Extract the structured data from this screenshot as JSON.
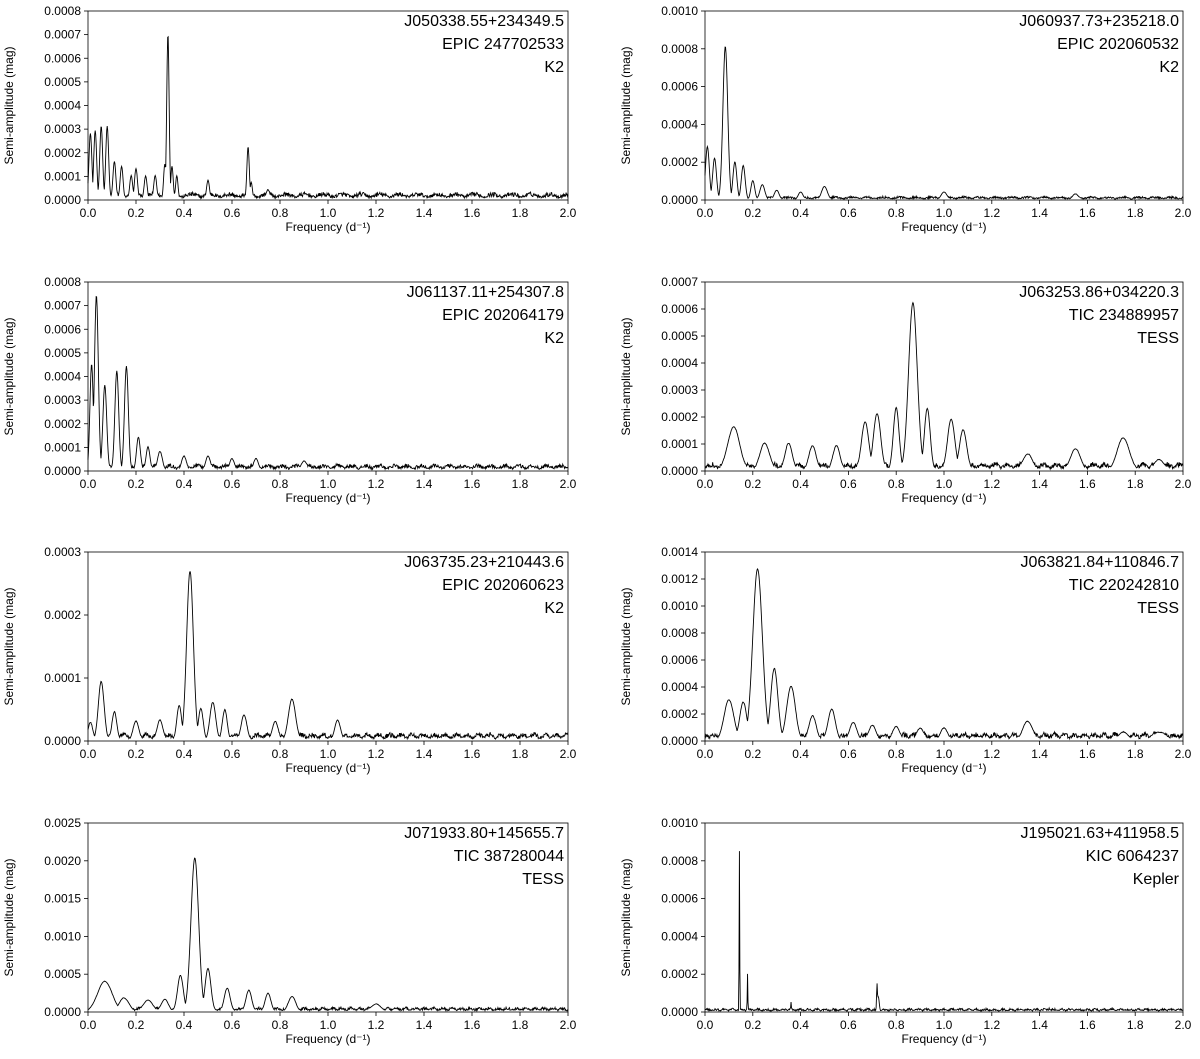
{
  "chart_data": [
    {
      "type": "line",
      "xlabel": "Frequency (d⁻¹)",
      "ylabel": "Semi-amplitude (mag)",
      "xlim": [
        0,
        2.0
      ],
      "ylim": [
        0,
        0.0008
      ],
      "xticks": [
        "0.0",
        "0.2",
        "0.4",
        "0.6",
        "0.8",
        "1.0",
        "1.2",
        "1.4",
        "1.6",
        "1.8",
        "2.0"
      ],
      "yticks": [
        "0.0000",
        "0.0001",
        "0.0002",
        "0.0003",
        "0.0004",
        "0.0005",
        "0.0006",
        "0.0007",
        "0.0008"
      ],
      "annotations": [
        "J050338.55+234349.5",
        "EPIC 247702533",
        "K2"
      ],
      "noise_level": 2e-05,
      "peaks": [
        [
          0.01,
          0.00028,
          0.006
        ],
        [
          0.03,
          0.00029,
          0.006
        ],
        [
          0.055,
          0.00031,
          0.006
        ],
        [
          0.08,
          0.00031,
          0.006
        ],
        [
          0.11,
          0.00016,
          0.006
        ],
        [
          0.14,
          0.00014,
          0.006
        ],
        [
          0.18,
          0.0001,
          0.006
        ],
        [
          0.2,
          0.00013,
          0.006
        ],
        [
          0.24,
          0.0001,
          0.006
        ],
        [
          0.28,
          0.0001,
          0.006
        ],
        [
          0.32,
          0.00015,
          0.005
        ],
        [
          0.333,
          0.0007,
          0.005
        ],
        [
          0.35,
          0.00014,
          0.005
        ],
        [
          0.37,
          0.0001,
          0.005
        ],
        [
          0.5,
          8e-05,
          0.006
        ],
        [
          0.667,
          0.00022,
          0.005
        ],
        [
          0.68,
          7e-05,
          0.005
        ],
        [
          0.75,
          4e-05,
          0.008
        ]
      ]
    },
    {
      "type": "line",
      "xlabel": "Frequency (d⁻¹)",
      "ylabel": "Semi-amplitude (mag)",
      "xlim": [
        0,
        2.0
      ],
      "ylim": [
        0,
        0.001
      ],
      "xticks": [
        "0.0",
        "0.2",
        "0.4",
        "0.6",
        "0.8",
        "1.0",
        "1.2",
        "1.4",
        "1.6",
        "1.8",
        "2.0"
      ],
      "yticks": [
        "0.0000",
        "0.0002",
        "0.0004",
        "0.0006",
        "0.0008",
        "0.0010"
      ],
      "annotations": [
        "J060937.73+235218.0",
        "EPIC 202060532",
        "K2"
      ],
      "noise_level": 1.2e-05,
      "peaks": [
        [
          0.01,
          0.00028,
          0.008
        ],
        [
          0.04,
          0.00022,
          0.008
        ],
        [
          0.085,
          0.00081,
          0.01
        ],
        [
          0.125,
          0.0002,
          0.008
        ],
        [
          0.16,
          0.00018,
          0.008
        ],
        [
          0.2,
          0.0001,
          0.008
        ],
        [
          0.24,
          8e-05,
          0.01
        ],
        [
          0.3,
          5e-05,
          0.01
        ],
        [
          0.4,
          4e-05,
          0.01
        ],
        [
          0.5,
          7e-05,
          0.012
        ],
        [
          1.0,
          4e-05,
          0.012
        ],
        [
          1.55,
          3e-05,
          0.012
        ]
      ]
    },
    {
      "type": "line",
      "xlabel": "Frequency (d⁻¹)",
      "ylabel": "Semi-amplitude (mag)",
      "xlim": [
        0,
        2.0
      ],
      "ylim": [
        0,
        0.0008
      ],
      "xticks": [
        "0.0",
        "0.2",
        "0.4",
        "0.6",
        "0.8",
        "1.0",
        "1.2",
        "1.4",
        "1.6",
        "1.8",
        "2.0"
      ],
      "yticks": [
        "0.0000",
        "0.0001",
        "0.0002",
        "0.0003",
        "0.0004",
        "0.0005",
        "0.0006",
        "0.0007",
        "0.0008"
      ],
      "annotations": [
        "J061137.11+254307.8",
        "EPIC 202064179",
        "K2"
      ],
      "noise_level": 1.8e-05,
      "peaks": [
        [
          0.015,
          0.00045,
          0.007
        ],
        [
          0.035,
          0.00074,
          0.008
        ],
        [
          0.07,
          0.00036,
          0.008
        ],
        [
          0.12,
          0.00042,
          0.008
        ],
        [
          0.16,
          0.00044,
          0.008
        ],
        [
          0.21,
          0.00014,
          0.008
        ],
        [
          0.25,
          0.0001,
          0.008
        ],
        [
          0.3,
          8e-05,
          0.01
        ],
        [
          0.4,
          6e-05,
          0.01
        ],
        [
          0.5,
          6e-05,
          0.01
        ],
        [
          0.6,
          5e-05,
          0.01
        ],
        [
          0.7,
          5e-05,
          0.01
        ],
        [
          0.9,
          4e-05,
          0.012
        ]
      ]
    },
    {
      "type": "line",
      "xlabel": "Frequency (d⁻¹)",
      "ylabel": "Semi-amplitude (mag)",
      "xlim": [
        0,
        2.0
      ],
      "ylim": [
        0,
        0.0007
      ],
      "xticks": [
        "0.0",
        "0.2",
        "0.4",
        "0.6",
        "0.8",
        "1.0",
        "1.2",
        "1.4",
        "1.6",
        "1.8",
        "2.0"
      ],
      "yticks": [
        "0.0000",
        "0.0001",
        "0.0002",
        "0.0003",
        "0.0004",
        "0.0005",
        "0.0006",
        "0.0007"
      ],
      "annotations": [
        "J063253.86+034220.3",
        "TIC 234889957",
        "TESS"
      ],
      "noise_level": 2e-05,
      "peaks": [
        [
          0.12,
          0.00016,
          0.025
        ],
        [
          0.25,
          0.0001,
          0.02
        ],
        [
          0.35,
          0.0001,
          0.015
        ],
        [
          0.45,
          9e-05,
          0.015
        ],
        [
          0.55,
          9e-05,
          0.015
        ],
        [
          0.67,
          0.00018,
          0.015
        ],
        [
          0.72,
          0.00021,
          0.015
        ],
        [
          0.8,
          0.00023,
          0.012
        ],
        [
          0.87,
          0.00062,
          0.018
        ],
        [
          0.93,
          0.00023,
          0.012
        ],
        [
          1.03,
          0.00019,
          0.015
        ],
        [
          1.08,
          0.00015,
          0.015
        ],
        [
          1.35,
          6e-05,
          0.02
        ],
        [
          1.55,
          8e-05,
          0.02
        ],
        [
          1.75,
          0.00012,
          0.025
        ],
        [
          1.9,
          4e-05,
          0.02
        ]
      ]
    },
    {
      "type": "line",
      "xlabel": "Frequency (d⁻¹)",
      "ylabel": "Semi-amplitude (mag)",
      "xlim": [
        0,
        2.0
      ],
      "ylim": [
        0,
        0.0003
      ],
      "xticks": [
        "0.0",
        "0.2",
        "0.4",
        "0.6",
        "0.8",
        "1.0",
        "1.2",
        "1.4",
        "1.6",
        "1.8",
        "2.0"
      ],
      "yticks": [
        "0.0000",
        "0.0001",
        "0.0002",
        "0.0003"
      ],
      "annotations": [
        "J063735.23+210443.6",
        "EPIC 202060623",
        "K2"
      ],
      "noise_level": 8e-06,
      "peaks": [
        [
          0.01,
          2.8e-05,
          0.01
        ],
        [
          0.055,
          9.3e-05,
          0.012
        ],
        [
          0.11,
          4.5e-05,
          0.01
        ],
        [
          0.2,
          3e-05,
          0.012
        ],
        [
          0.3,
          3.2e-05,
          0.012
        ],
        [
          0.38,
          5.5e-05,
          0.01
        ],
        [
          0.425,
          0.000268,
          0.014
        ],
        [
          0.47,
          5e-05,
          0.01
        ],
        [
          0.52,
          6e-05,
          0.012
        ],
        [
          0.57,
          4.8e-05,
          0.01
        ],
        [
          0.65,
          4e-05,
          0.012
        ],
        [
          0.78,
          3e-05,
          0.012
        ],
        [
          0.85,
          6.5e-05,
          0.015
        ],
        [
          1.04,
          3.2e-05,
          0.012
        ]
      ]
    },
    {
      "type": "line",
      "xlabel": "Frequency (d⁻¹)",
      "ylabel": "Semi-amplitude (mag)",
      "xlim": [
        0,
        2.0
      ],
      "ylim": [
        0,
        0.0014
      ],
      "xticks": [
        "0.0",
        "0.2",
        "0.4",
        "0.6",
        "0.8",
        "1.0",
        "1.2",
        "1.4",
        "1.6",
        "1.8",
        "2.0"
      ],
      "yticks": [
        "0.0000",
        "0.0002",
        "0.0004",
        "0.0006",
        "0.0008",
        "0.0010",
        "0.0012",
        "0.0014"
      ],
      "annotations": [
        "J063821.84+110846.7",
        "TIC 220242810",
        "TESS"
      ],
      "noise_level": 4e-05,
      "peaks": [
        [
          0.1,
          0.0003,
          0.02
        ],
        [
          0.16,
          0.00028,
          0.015
        ],
        [
          0.22,
          0.00127,
          0.02
        ],
        [
          0.29,
          0.00053,
          0.015
        ],
        [
          0.36,
          0.0004,
          0.018
        ],
        [
          0.45,
          0.00018,
          0.015
        ],
        [
          0.53,
          0.00023,
          0.015
        ],
        [
          0.62,
          0.00013,
          0.015
        ],
        [
          0.7,
          0.00011,
          0.015
        ],
        [
          0.8,
          0.0001,
          0.015
        ],
        [
          0.9,
          9e-05,
          0.015
        ],
        [
          1.0,
          9e-05,
          0.015
        ],
        [
          1.35,
          0.00014,
          0.02
        ],
        [
          1.75,
          6e-05,
          0.02
        ],
        [
          1.9,
          6e-05,
          0.03
        ]
      ]
    },
    {
      "type": "line",
      "xlabel": "Frequency (d⁻¹)",
      "ylabel": "Semi-amplitude (mag)",
      "xlim": [
        0,
        2.0
      ],
      "ylim": [
        0,
        0.0025
      ],
      "xticks": [
        "0.0",
        "0.2",
        "0.4",
        "0.6",
        "0.8",
        "1.0",
        "1.2",
        "1.4",
        "1.6",
        "1.8",
        "2.0"
      ],
      "yticks": [
        "0.0000",
        "0.0005",
        "0.0010",
        "0.0015",
        "0.0020",
        "0.0025"
      ],
      "annotations": [
        "J071933.80+145655.7",
        "TIC 387280044",
        "TESS"
      ],
      "noise_level": 4e-05,
      "peaks": [
        [
          0.07,
          0.0004,
          0.03
        ],
        [
          0.15,
          0.00018,
          0.02
        ],
        [
          0.25,
          0.00015,
          0.02
        ],
        [
          0.32,
          0.00016,
          0.015
        ],
        [
          0.385,
          0.00048,
          0.012
        ],
        [
          0.445,
          0.00203,
          0.016
        ],
        [
          0.5,
          0.00057,
          0.012
        ],
        [
          0.58,
          0.00031,
          0.012
        ],
        [
          0.67,
          0.00028,
          0.012
        ],
        [
          0.75,
          0.00024,
          0.012
        ],
        [
          0.85,
          0.0002,
          0.015
        ],
        [
          1.2,
          0.0001,
          0.02
        ]
      ]
    },
    {
      "type": "line",
      "xlabel": "Frequency (d⁻¹)",
      "ylabel": "Semi-amplitude (mag)",
      "xlim": [
        0,
        2.0
      ],
      "ylim": [
        0,
        0.001
      ],
      "xticks": [
        "0.0",
        "0.2",
        "0.4",
        "0.6",
        "0.8",
        "1.0",
        "1.2",
        "1.4",
        "1.6",
        "1.8",
        "2.0"
      ],
      "yticks": [
        "0.0000",
        "0.0002",
        "0.0004",
        "0.0006",
        "0.0008",
        "0.0010"
      ],
      "annotations": [
        "J195021.63+411958.5",
        "KIC 6064237",
        "Kepler"
      ],
      "noise_level": 1.2e-05,
      "peaks": [
        [
          0.144,
          0.00085,
          0.0012
        ],
        [
          0.178,
          0.0002,
          0.0012
        ],
        [
          0.36,
          5e-05,
          0.0015
        ],
        [
          0.72,
          0.00015,
          0.002
        ],
        [
          0.725,
          8e-05,
          0.004
        ],
        [
          1.44,
          2e-05,
          0.002
        ]
      ]
    }
  ]
}
